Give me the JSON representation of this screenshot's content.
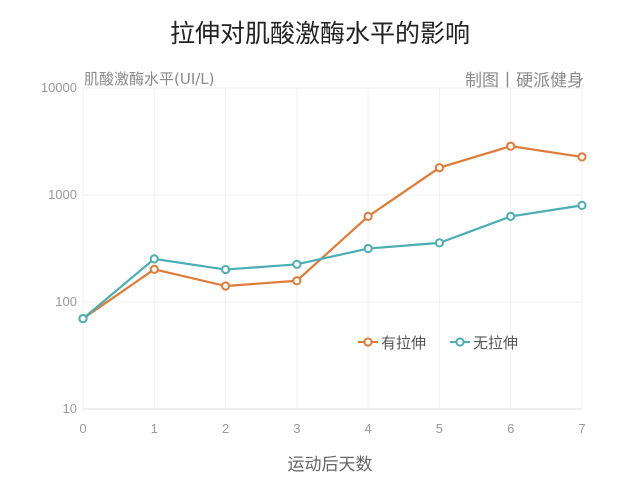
{
  "chart_data": {
    "type": "line",
    "title": "拉伸对肌酸激酶水平的影响",
    "ylabel": "肌酸激酶水平(UI/L)",
    "xlabel": "运动后天数",
    "credit": "制图丨硬派健身",
    "x": [
      0,
      1,
      2,
      3,
      4,
      5,
      6,
      7
    ],
    "xlim": [
      0,
      7
    ],
    "ylim": [
      10,
      10000
    ],
    "yscale": "log",
    "yticks": [
      10,
      100,
      1000,
      10000
    ],
    "grid": true,
    "legend_placement": "center-right",
    "series": [
      {
        "name": "有拉伸",
        "color": "#e07b39",
        "values": [
          70,
          202,
          141,
          158,
          631,
          1800,
          2860,
          2270
        ]
      },
      {
        "name": "无拉伸",
        "color": "#4aaeb4",
        "values": [
          70,
          253,
          201,
          225,
          316,
          357,
          631,
          800
        ]
      }
    ]
  }
}
